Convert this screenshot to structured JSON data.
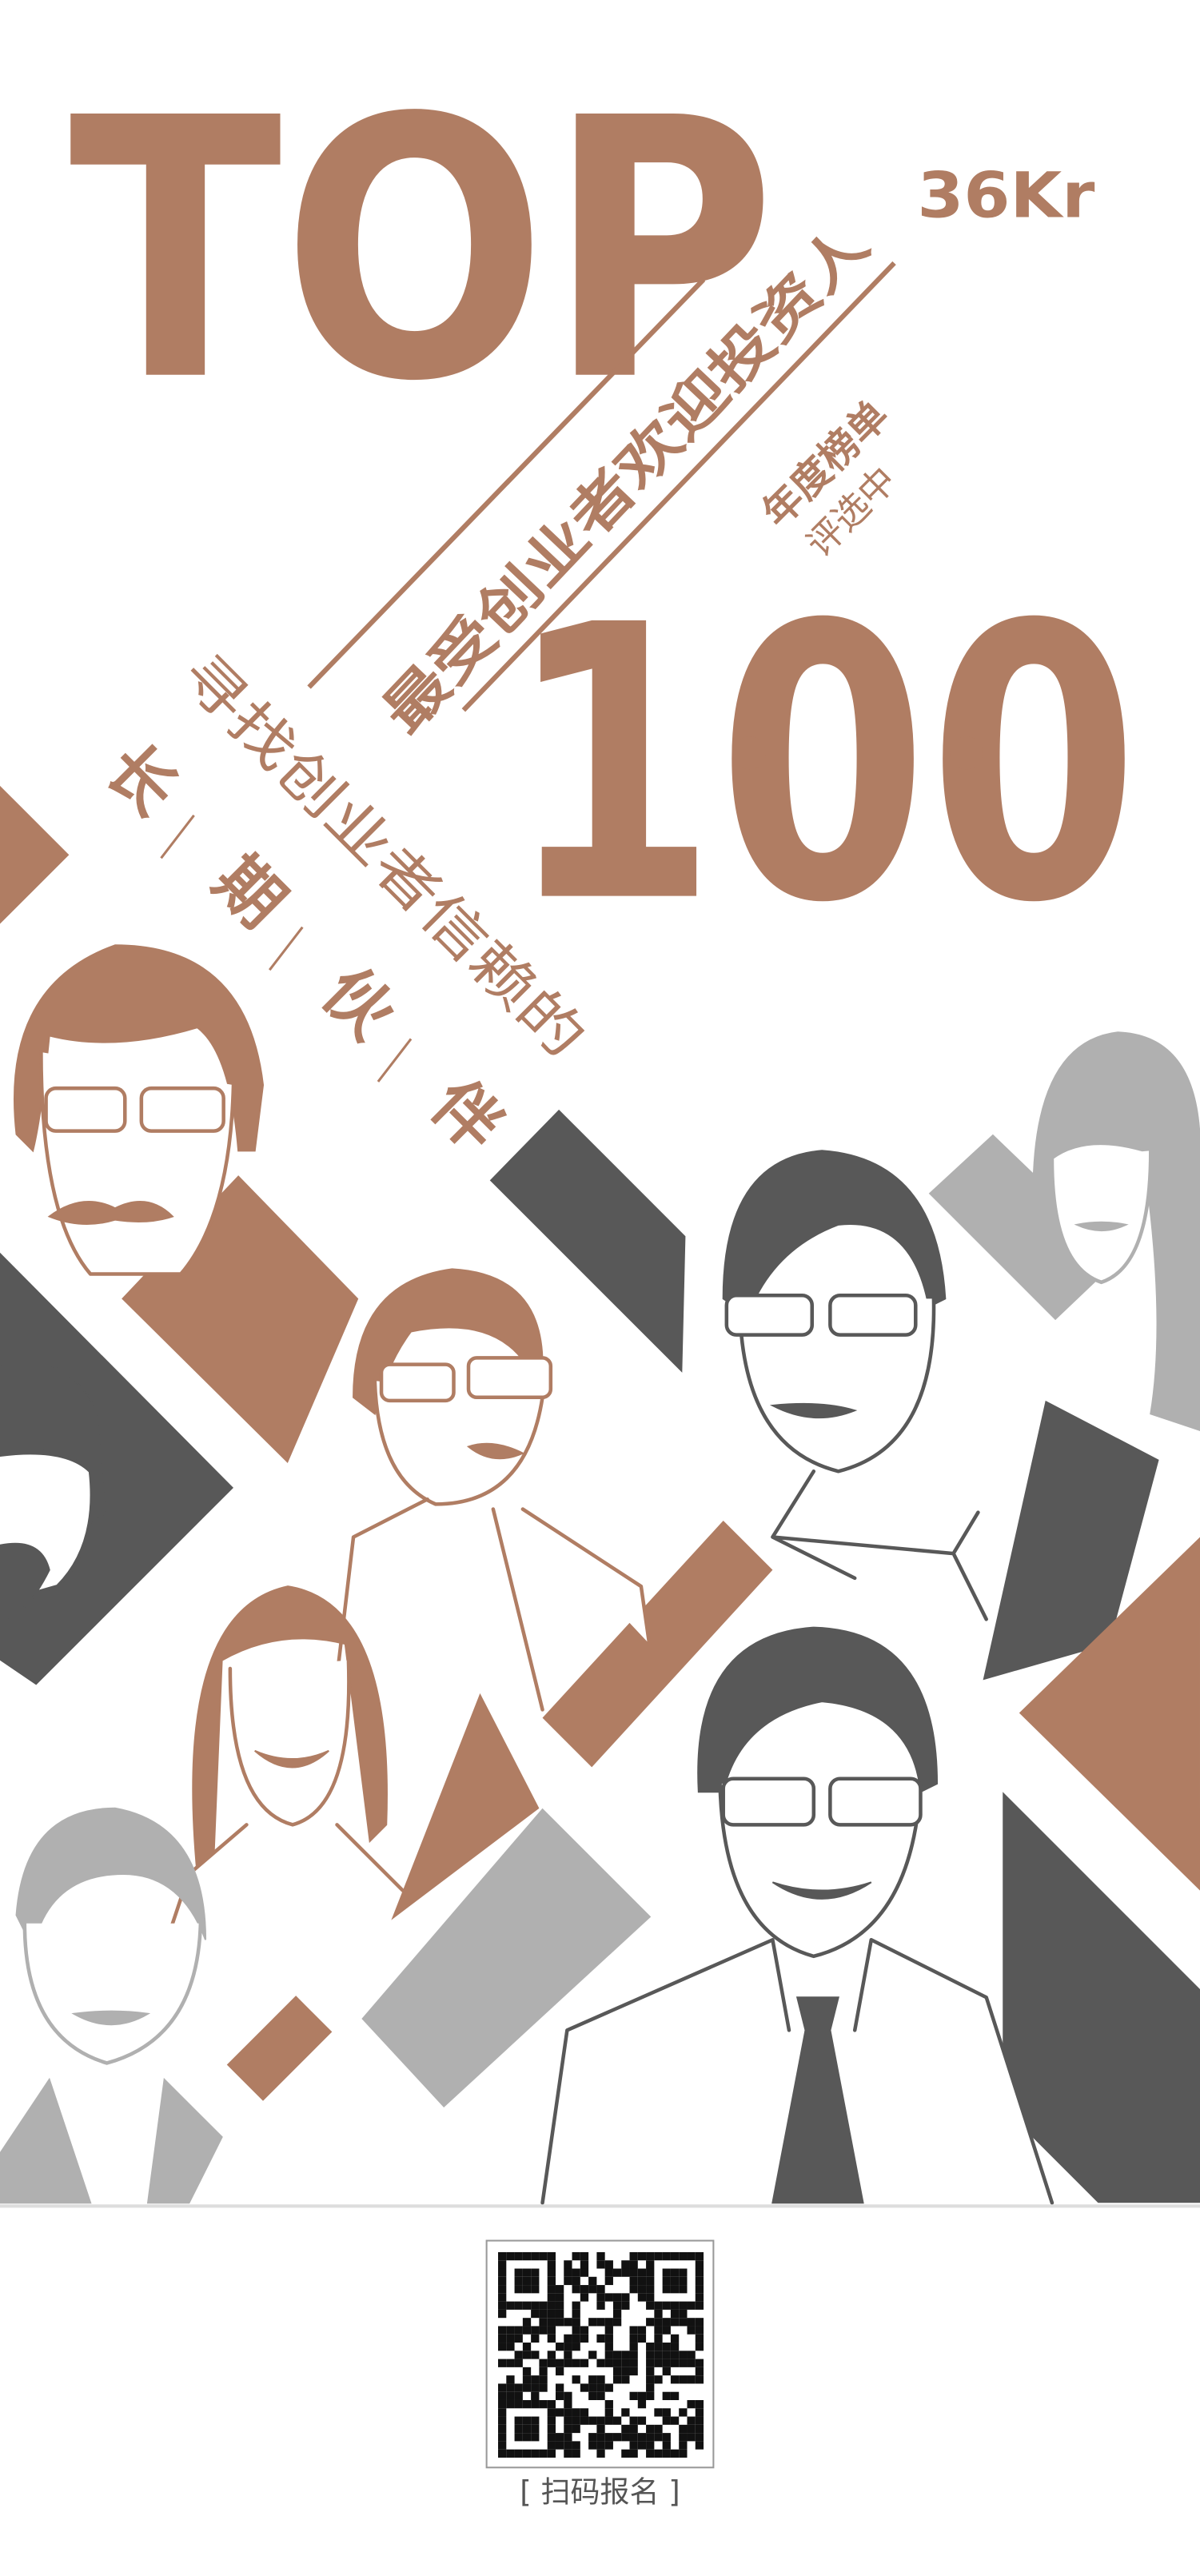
{
  "header": {
    "title": "TOP",
    "brand": "36Kr",
    "subtitle": "最受创业者欢迎投资人",
    "badge": "年度榜单",
    "status": "评选中",
    "number": "100"
  },
  "tagline": {
    "lead": "寻找创业者信赖的",
    "chars": [
      "长",
      "期",
      "伙",
      "伴"
    ]
  },
  "footer": {
    "cta": "[ 扫码报名 ]"
  }
}
